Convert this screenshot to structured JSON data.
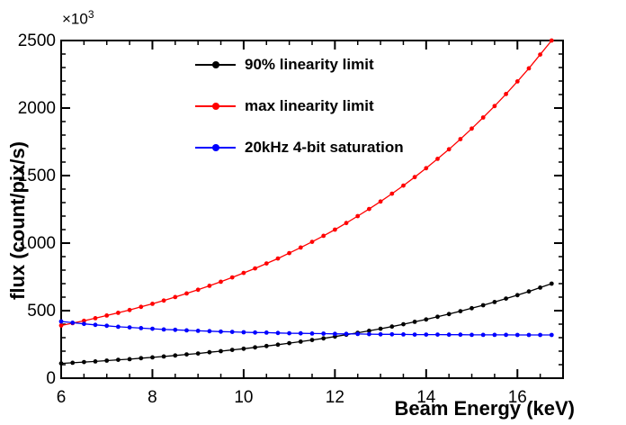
{
  "figure": {
    "background": "#ffffff",
    "frame_color": "#000000",
    "series_colors": {
      "black": "#000000",
      "red": "#ff0000",
      "blue": "#0000ff"
    }
  },
  "axes": {
    "x": {
      "label": "Beam Energy (keV)",
      "min": 6,
      "max": 17,
      "major_ticks": [
        6,
        8,
        10,
        12,
        14,
        16
      ],
      "minor_step": 0.5
    },
    "y": {
      "label": "flux (count/pix/s)",
      "min": 0,
      "max": 2500,
      "major_ticks": [
        0,
        500,
        1000,
        1500,
        2000,
        2500
      ],
      "minor_step": 100,
      "multiplier_label": "×10",
      "multiplier_exp": "3"
    }
  },
  "legend": {
    "items": [
      {
        "label": "90% linearity limit",
        "color": "#000000"
      },
      {
        "label": "max linearity limit",
        "color": "#ff0000"
      },
      {
        "label": "20kHz 4-bit saturation",
        "color": "#0000ff"
      }
    ]
  },
  "chart_data": {
    "type": "line",
    "title": "",
    "xlabel": "Beam Energy (keV)",
    "ylabel": "flux (count/pix/s)",
    "y_unit_multiplier": "1e3",
    "xlim": [
      6,
      17
    ],
    "ylim": [
      0,
      2500
    ],
    "grid": false,
    "legend_position": "top-left-inside",
    "marker": "filled-circle",
    "x": [
      6.0,
      6.25,
      6.5,
      6.75,
      7.0,
      7.25,
      7.5,
      7.75,
      8.0,
      8.25,
      8.5,
      8.75,
      9.0,
      9.25,
      9.5,
      9.75,
      10.0,
      10.25,
      10.5,
      10.75,
      11.0,
      11.25,
      11.5,
      11.75,
      12.0,
      12.25,
      12.5,
      12.75,
      13.0,
      13.25,
      13.5,
      13.75,
      14.0,
      14.25,
      14.5,
      14.75,
      15.0,
      15.25,
      15.5,
      15.75,
      16.0,
      16.25,
      16.5,
      16.75
    ],
    "series": [
      {
        "name": "90% linearity limit",
        "color": "#000000",
        "values": [
          109,
          114,
          119,
          124,
          130,
          136,
          141,
          148,
          154,
          161,
          168,
          176,
          183,
          192,
          200,
          209,
          218,
          228,
          238,
          248,
          259,
          271,
          283,
          295,
          308,
          322,
          336,
          351,
          366,
          382,
          399,
          417,
          435,
          455,
          475,
          496,
          518,
          540,
          564,
          589,
          615,
          642,
          671,
          700
        ]
      },
      {
        "name": "max linearity limit",
        "color": "#ff0000",
        "values": [
          390,
          407,
          425,
          444,
          464,
          484,
          505,
          528,
          551,
          575,
          601,
          627,
          655,
          684,
          714,
          746,
          779,
          813,
          849,
          886,
          926,
          967,
          1009,
          1054,
          1100,
          1149,
          1200,
          1253,
          1308,
          1366,
          1426,
          1489,
          1555,
          1624,
          1695,
          1770,
          1848,
          1930,
          2015,
          2104,
          2197,
          2294,
          2396,
          2500
        ]
      },
      {
        "name": "20kHz 4-bit saturation",
        "color": "#0000ff",
        "values": [
          420,
          411,
          402,
          395,
          388,
          381,
          376,
          371,
          366,
          361,
          358,
          354,
          351,
          348,
          345,
          343,
          340,
          338,
          337,
          335,
          333,
          332,
          331,
          330,
          328,
          328,
          327,
          326,
          325,
          325,
          324,
          323,
          323,
          323,
          322,
          322,
          321,
          321,
          321,
          321,
          320,
          320,
          320,
          320
        ]
      }
    ]
  }
}
